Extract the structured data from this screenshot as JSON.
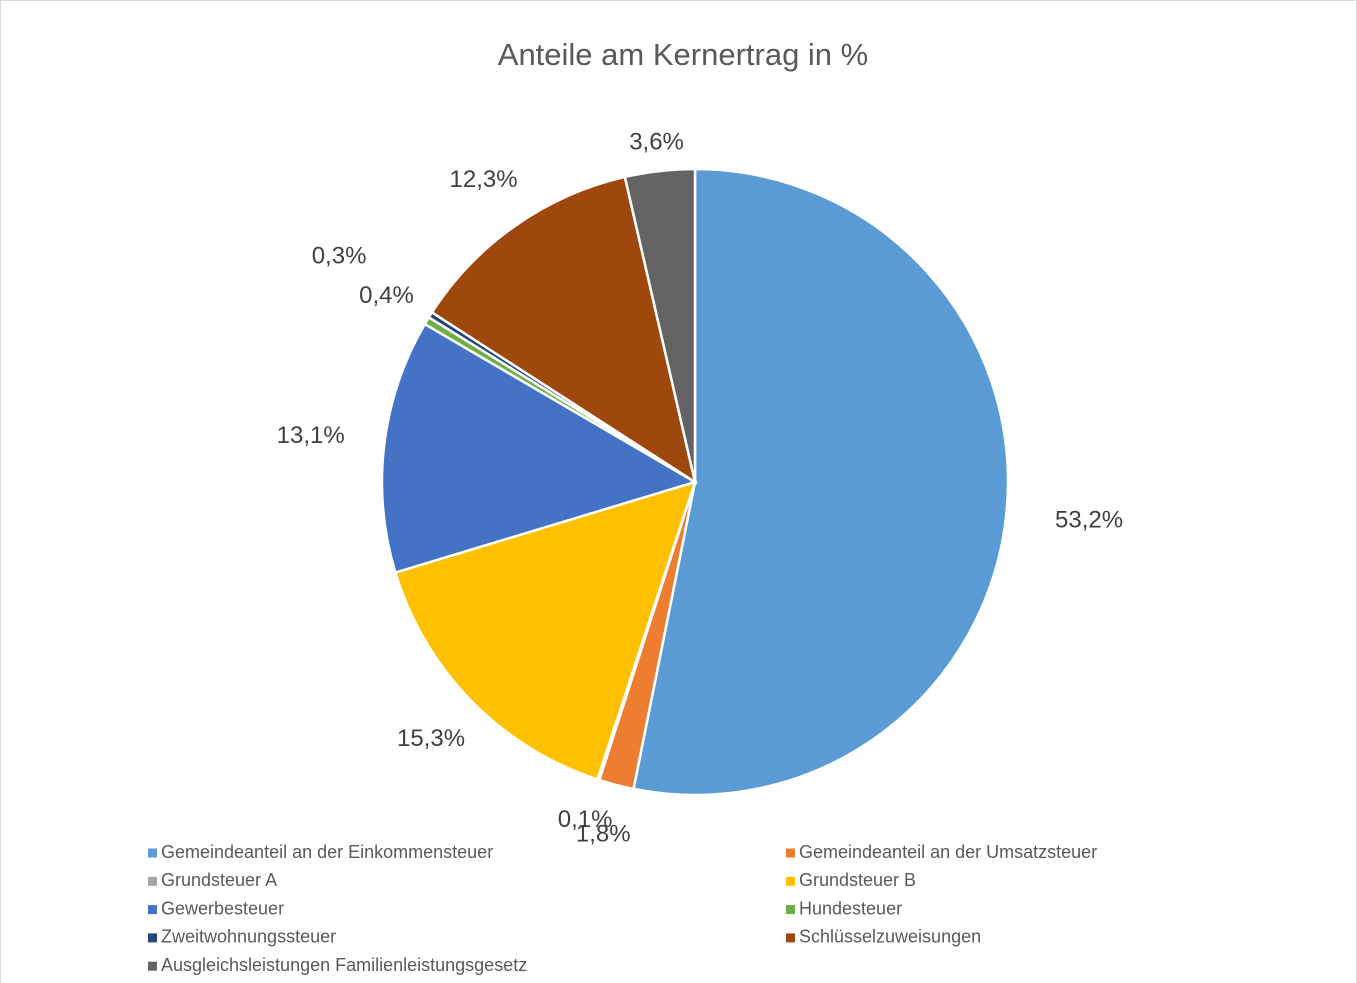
{
  "chart_data": {
    "type": "pie",
    "title": "Anteile am Kernertrag in %",
    "categories": [
      "Gemeindeanteil an der Einkommensteuer",
      "Gemeindeanteil an der Umsatzsteuer",
      "Grundsteuer A",
      "Grundsteuer B",
      "Gewerbesteuer",
      "Hundesteuer",
      "Zweitwohnungssteuer",
      "Schlüsselzuweisungen",
      "Ausgleichsleistungen Familienleistungsgesetz"
    ],
    "values": [
      53.2,
      1.8,
      0.1,
      15.3,
      13.1,
      0.4,
      0.3,
      12.3,
      3.6
    ],
    "value_labels": [
      "53,2%",
      "1,8%",
      "0,1%",
      "15,3%",
      "13,1%",
      "0,4%",
      "0,3%",
      "12,3%",
      "3,6%"
    ],
    "colors": [
      "#5B9BD5",
      "#ED7D31",
      "#A5A5A5",
      "#FFC000",
      "#4472C4",
      "#70AD47",
      "#264478",
      "#9E480E",
      "#636363"
    ],
    "legend": "bottom"
  }
}
